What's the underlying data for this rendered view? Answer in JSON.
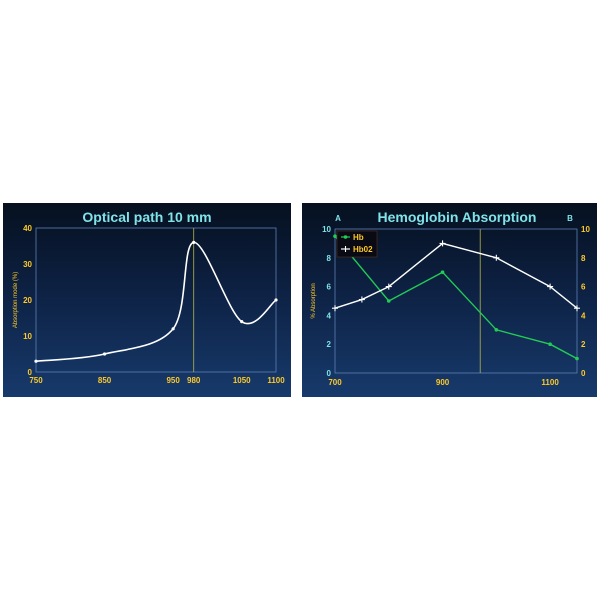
{
  "colors": {
    "title": "#7fe3e8",
    "tick_left": "#ffc928",
    "tick_right": "#7fe3e8",
    "white_series": "#ffffff",
    "green_series": "#22cc55",
    "marker_line": "#b5b54a"
  },
  "chart_data": [
    {
      "type": "line",
      "title": "Optical path 10 mm",
      "xlabel": "",
      "ylabel": "Absorption mode (%)",
      "xlim": [
        750,
        1100
      ],
      "ylim": [
        0,
        40
      ],
      "x_ticks": [
        750,
        850,
        950,
        980,
        1050,
        1100
      ],
      "y_ticks": [
        0,
        10,
        20,
        30,
        40
      ],
      "grid": false,
      "reference_line_x": 980,
      "series": [
        {
          "x": [
            750,
            850,
            950,
            980,
            1050,
            1100
          ],
          "y": [
            3,
            5,
            12,
            36,
            14,
            20
          ]
        }
      ]
    },
    {
      "type": "line",
      "title": "Hemoglobin Absorption",
      "xlabel": "",
      "ylabel": "% Absorption",
      "left_axis_label": "A",
      "right_axis_label": "B",
      "xlim": [
        700,
        1150
      ],
      "ylim": [
        0,
        10
      ],
      "x_ticks": [
        700,
        900,
        1100
      ],
      "y_ticks": [
        0,
        2,
        4,
        6,
        8,
        10
      ],
      "grid": false,
      "reference_line_x": 970,
      "legend": {
        "placement": "top-left"
      },
      "series": [
        {
          "name": "Hb",
          "x": [
            700,
            800,
            900,
            1000,
            1100,
            1150
          ],
          "y": [
            9.5,
            5,
            7,
            3,
            2,
            1
          ]
        },
        {
          "name": "Hb02",
          "x": [
            700,
            750,
            800,
            900,
            1000,
            1100,
            1150
          ],
          "y": [
            4.5,
            5.1,
            6,
            9,
            8,
            6,
            4.5
          ]
        }
      ]
    }
  ]
}
